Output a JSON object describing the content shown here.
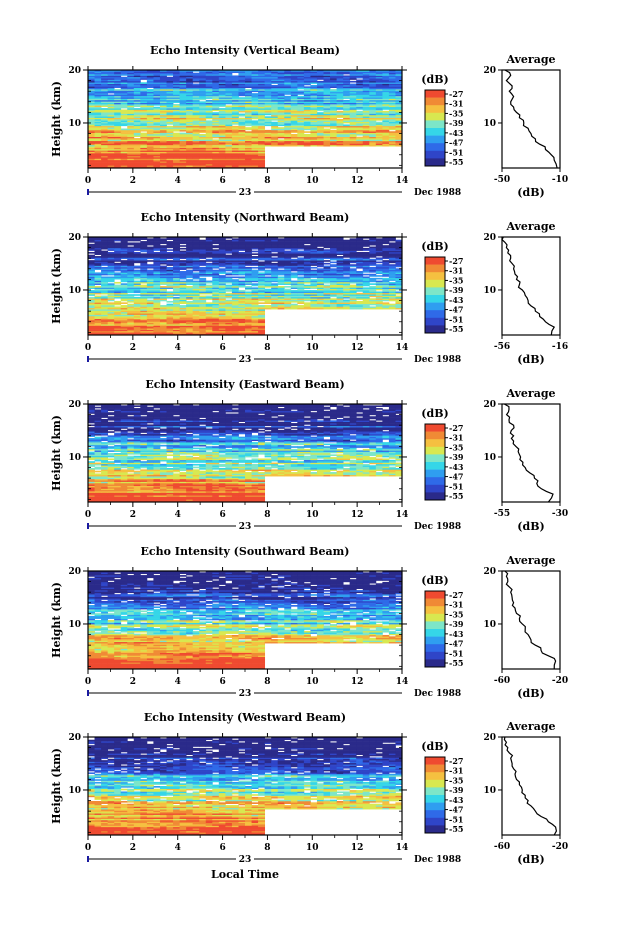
{
  "chart_data": {
    "type": "heatmap",
    "time_axis": {
      "label": "Local Time",
      "ticks": [
        0,
        2,
        4,
        6,
        8,
        10,
        12,
        14
      ],
      "range": [
        0,
        14
      ],
      "day_label": "23",
      "month_year_label": "Dec 1988"
    },
    "height_axis": {
      "label": "Height (km)",
      "ticks": [
        10,
        20
      ],
      "range": [
        1.5,
        20
      ]
    },
    "colorbar": {
      "unit_label": "(dB)",
      "ticks": [
        -27,
        -31,
        -35,
        -39,
        -43,
        -47,
        -51,
        -55
      ],
      "colors": [
        "#2a2a8a",
        "#2f45c8",
        "#2f6ae8",
        "#2f9ef0",
        "#35d6e8",
        "#7de6c8",
        "#d8e850",
        "#f5c040",
        "#f08a35",
        "#ef4a30"
      ]
    },
    "panels": [
      {
        "title": "Echo Intensity (Vertical Beam)",
        "average": {
          "title": "Average",
          "xlabel": "(dB)",
          "xlim": [
            -50,
            -10
          ],
          "xticks": [
            -50,
            -10
          ],
          "height": [
            1.5,
            3,
            4,
            5,
            6,
            7,
            8,
            9,
            10,
            11,
            12,
            13,
            14,
            15,
            16,
            17,
            18,
            19,
            20
          ],
          "value": [
            -12,
            -14,
            -16,
            -20,
            -24,
            -27,
            -30,
            -32,
            -35,
            -38,
            -40,
            -42,
            -44,
            -42,
            -45,
            -43,
            -47,
            -44,
            -48
          ]
        }
      },
      {
        "title": "Echo Intensity (Northward Beam)",
        "average": {
          "title": "Average",
          "xlabel": "(dB)",
          "xlim": [
            -56,
            -16
          ],
          "xticks": [
            -56,
            -16
          ],
          "height": [
            1.5,
            3,
            4,
            5,
            6,
            7,
            8,
            9,
            10,
            11,
            12,
            13,
            14,
            15,
            16,
            17,
            18,
            19,
            20
          ],
          "value": [
            -22,
            -20,
            -26,
            -30,
            -33,
            -36,
            -38,
            -40,
            -42,
            -44,
            -46,
            -47,
            -48,
            -49,
            -50,
            -52,
            -53,
            -54,
            -55
          ]
        }
      },
      {
        "title": "Echo Intensity (Eastward Beam)",
        "average": {
          "title": "Average",
          "xlabel": "(dB)",
          "xlim": [
            -55,
            -30
          ],
          "xticks": [
            -55,
            -30
          ],
          "height": [
            1.5,
            3,
            4,
            5,
            6,
            7,
            8,
            9,
            10,
            11,
            12,
            13,
            14,
            15,
            16,
            17,
            18,
            19,
            20
          ],
          "value": [
            -35,
            -33,
            -38,
            -40,
            -41,
            -43,
            -45,
            -46,
            -47,
            -48,
            -49,
            -50,
            -50,
            -51,
            -50,
            -52,
            -53,
            -52,
            -54
          ]
        }
      },
      {
        "title": "Echo Intensity (Southward Beam)",
        "average": {
          "title": "Average",
          "xlabel": "(dB)",
          "xlim": [
            -60,
            -20
          ],
          "xticks": [
            -60,
            -20
          ],
          "height": [
            1.5,
            3,
            4,
            5,
            6,
            7,
            8,
            9,
            10,
            11,
            12,
            13,
            14,
            15,
            16,
            17,
            18,
            19,
            20
          ],
          "value": [
            -24,
            -23,
            -28,
            -33,
            -37,
            -40,
            -42,
            -44,
            -46,
            -48,
            -50,
            -51,
            -52,
            -53,
            -54,
            -55,
            -56,
            -57,
            -58
          ]
        }
      },
      {
        "title": "Echo Intensity (Westward Beam)",
        "average": {
          "title": "Average",
          "xlabel": "(dB)",
          "xlim": [
            -60,
            -20
          ],
          "xticks": [
            -60,
            -20
          ],
          "height": [
            1.5,
            3,
            4,
            5,
            6,
            7,
            8,
            9,
            10,
            11,
            12,
            13,
            14,
            15,
            16,
            17,
            18,
            19,
            20
          ],
          "value": [
            -24,
            -23,
            -28,
            -33,
            -37,
            -40,
            -42,
            -44,
            -46,
            -48,
            -50,
            -51,
            -52,
            -53,
            -54,
            -55,
            -56,
            -57,
            -58
          ]
        }
      }
    ]
  }
}
